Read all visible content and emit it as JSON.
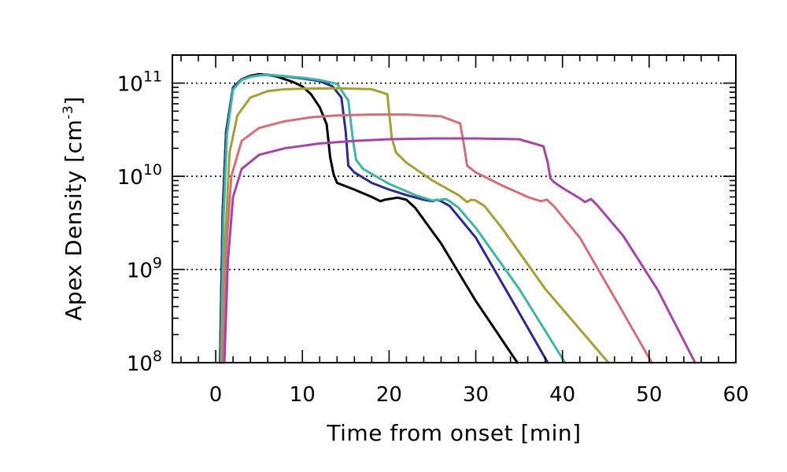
{
  "chart_data": {
    "type": "line",
    "title": "",
    "xlabel": "Time from onset [min]",
    "ylabel_main": "Apex Density [cm",
    "ylabel_sup": "-3",
    "ylabel_close": "]",
    "xlim": [
      -5,
      60
    ],
    "ylim": [
      100000000,
      200000000000
    ],
    "yscale": "log",
    "grid": "y-major dotted",
    "x_ticks": [
      {
        "value": 0,
        "label": "0"
      },
      {
        "value": 10,
        "label": "10"
      },
      {
        "value": 20,
        "label": "20"
      },
      {
        "value": 30,
        "label": "30"
      },
      {
        "value": 40,
        "label": "40"
      },
      {
        "value": 50,
        "label": "50"
      },
      {
        "value": 60,
        "label": "60"
      }
    ],
    "y_ticks": [
      {
        "value": 100000000,
        "base": "10",
        "exp": "8"
      },
      {
        "value": 1000000000,
        "base": "10",
        "exp": "9"
      },
      {
        "value": 10000000000,
        "base": "10",
        "exp": "10"
      },
      {
        "value": 100000000000,
        "base": "10",
        "exp": "11"
      }
    ],
    "series": [
      {
        "name": "black",
        "color": "#000000",
        "x": [
          0.5,
          0.8,
          1.2,
          2,
          3,
          4,
          5,
          6,
          7,
          8,
          9,
          10,
          11,
          12,
          12.8,
          13.2,
          13.6,
          14,
          16,
          18,
          19,
          19.5,
          20,
          21,
          22,
          23,
          26,
          30,
          34.8
        ],
        "y": [
          100000000.0,
          4000000000.0,
          30000000000.0,
          90000000000.0,
          110000000000.0,
          120000000000.0,
          125000000000.0,
          122000000000.0,
          118000000000.0,
          110000000000.0,
          102000000000.0,
          92000000000.0,
          76000000000.0,
          55000000000.0,
          36000000000.0,
          16000000000.0,
          10500000000.0,
          8500000000.0,
          7200000000.0,
          6000000000.0,
          5400000000.0,
          5600000000.0,
          5700000000.0,
          5900000000.0,
          5600000000.0,
          4600000000.0,
          1900000000.0,
          460000000.0,
          100000000.0
        ]
      },
      {
        "name": "navy",
        "color": "#2e2a8c",
        "x": [
          0.5,
          0.8,
          1.2,
          2,
          3,
          4,
          5,
          6,
          8,
          10,
          12,
          13.5,
          14.5,
          15,
          15.3,
          16,
          18,
          20,
          22,
          24,
          25,
          25.5,
          26,
          27,
          30,
          34,
          38.3
        ],
        "y": [
          100000000.0,
          4000000000.0,
          30000000000.0,
          90000000000.0,
          110000000000.0,
          118000000000.0,
          122000000000.0,
          123000000000.0,
          118000000000.0,
          112000000000.0,
          105000000000.0,
          92000000000.0,
          70000000000.0,
          30000000000.0,
          13000000000.0,
          11000000000.0,
          8500000000.0,
          7200000000.0,
          6300000000.0,
          5600000000.0,
          5400000000.0,
          5600000000.0,
          5400000000.0,
          4800000000.0,
          2200000000.0,
          500000000.0,
          100000000.0
        ]
      },
      {
        "name": "teal",
        "color": "#3fb5a3",
        "x": [
          0.6,
          0.9,
          1.3,
          2,
          3,
          4,
          5,
          6,
          8,
          10,
          12,
          14,
          15.3,
          15.8,
          16.2,
          17,
          20,
          23,
          25,
          26,
          26.5,
          27,
          28,
          30,
          35,
          40.3
        ],
        "y": [
          100000000.0,
          3500000000.0,
          28000000000.0,
          85000000000.0,
          108000000000.0,
          117000000000.0,
          121000000000.0,
          122000000000.0,
          119000000000.0,
          114000000000.0,
          108000000000.0,
          98000000000.0,
          65000000000.0,
          26000000000.0,
          15000000000.0,
          12000000000.0,
          8300000000.0,
          6300000000.0,
          5500000000.0,
          5600000000.0,
          5700000000.0,
          5400000000.0,
          4600000000.0,
          2800000000.0,
          620000000.0,
          100000000.0
        ]
      },
      {
        "name": "olive",
        "color": "#a5a035",
        "x": [
          0.7,
          1.1,
          1.6,
          2.5,
          4,
          6,
          8,
          10,
          14,
          18,
          19.8,
          20.3,
          20.8,
          22,
          25,
          28,
          29,
          29.5,
          30,
          31,
          33,
          38,
          45.3
        ],
        "y": [
          100000000.0,
          2000000000.0,
          18000000000.0,
          45000000000.0,
          70000000000.0,
          82000000000.0,
          86000000000.0,
          87000000000.0,
          88000000000.0,
          86000000000.0,
          76000000000.0,
          26000000000.0,
          18000000000.0,
          14000000000.0,
          9000000000.0,
          6300000000.0,
          5300000000.0,
          5600000000.0,
          5500000000.0,
          4800000000.0,
          2800000000.0,
          620000000.0,
          100000000.0
        ]
      },
      {
        "name": "rose",
        "color": "#d36f7b",
        "x": [
          0.8,
          1.2,
          1.8,
          3,
          5,
          8,
          11,
          14,
          18,
          22,
          26,
          28.2,
          28.7,
          29,
          30,
          33,
          36,
          37.5,
          38.2,
          39,
          42,
          46,
          50.3
        ],
        "y": [
          100000000.0,
          1500000000.0,
          10000000000.0,
          24000000000.0,
          33000000000.0,
          39000000000.0,
          43000000000.0,
          45000000000.0,
          46000000000.0,
          46000000000.0,
          44000000000.0,
          37000000000.0,
          20000000000.0,
          13000000000.0,
          11000000000.0,
          8000000000.0,
          6000000000.0,
          5400000000.0,
          5600000000.0,
          4800000000.0,
          2200000000.0,
          500000000.0,
          100000000.0
        ]
      },
      {
        "name": "magenta",
        "color": "#a445a8",
        "x": [
          1.0,
          1.4,
          2,
          3,
          5,
          8,
          12,
          16,
          20,
          25,
          30,
          35,
          37.8,
          38.3,
          38.6,
          39,
          40,
          42,
          42.6,
          43.3,
          44,
          47,
          51,
          55.3
        ],
        "y": [
          100000000.0,
          1200000000.0,
          6000000000.0,
          12000000000.0,
          17000000000.0,
          20000000000.0,
          22500000000.0,
          24000000000.0,
          25000000000.0,
          25500000000.0,
          25500000000.0,
          25000000000.0,
          21000000000.0,
          14000000000.0,
          9500000000.0,
          8700000000.0,
          7500000000.0,
          5800000000.0,
          5300000000.0,
          5700000000.0,
          4900000000.0,
          2300000000.0,
          600000000.0,
          100000000.0
        ]
      }
    ]
  }
}
